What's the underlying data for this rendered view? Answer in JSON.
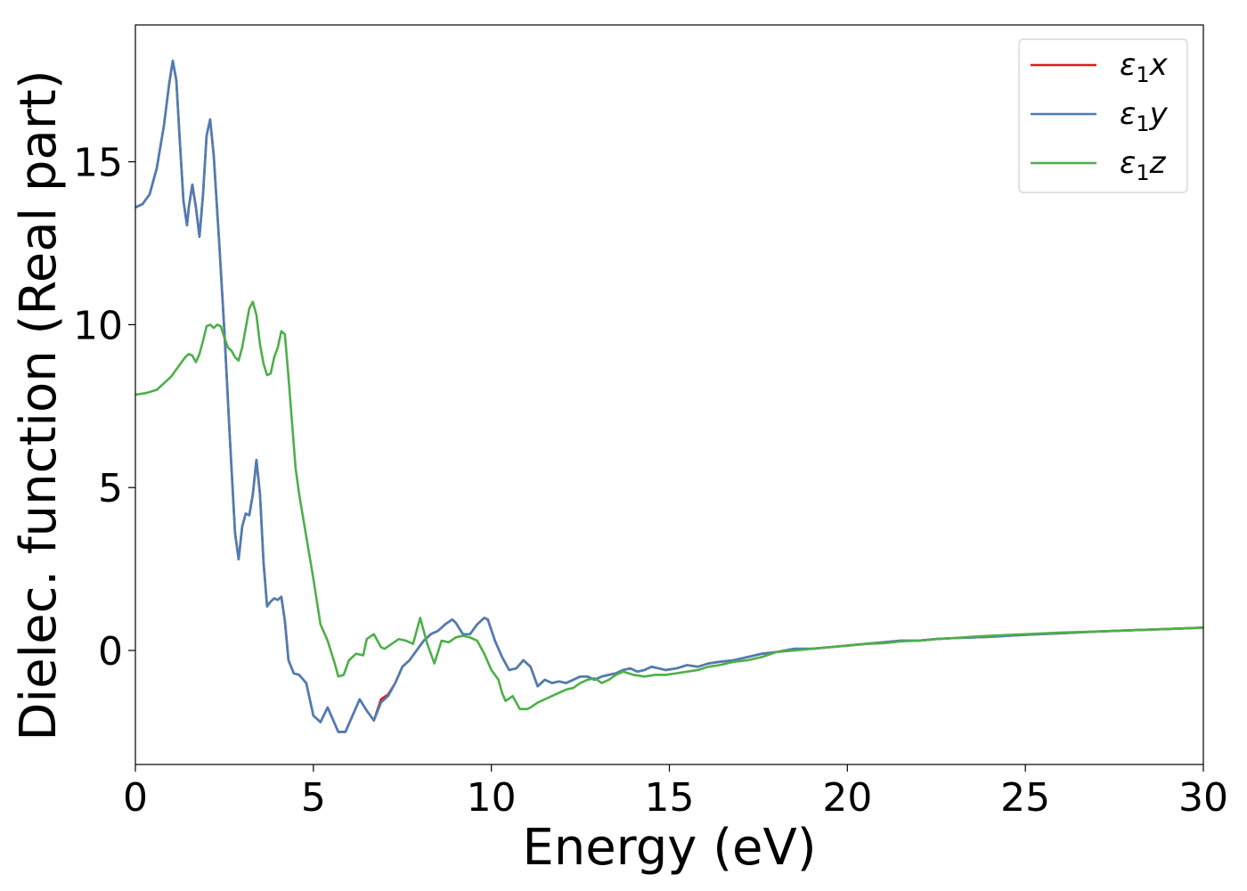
{
  "chart_data": {
    "type": "line",
    "title": "",
    "xlabel": "Energy (eV)",
    "ylabel": "Dielec. function (Real part)",
    "xlim": [
      0,
      30
    ],
    "ylim": [
      -3.5,
      19.2
    ],
    "xticks": [
      0,
      5,
      10,
      15,
      20,
      25,
      30
    ],
    "yticks": [
      0,
      5,
      10,
      15
    ],
    "grid": false,
    "legend_position": "top-right",
    "series": [
      {
        "name": "ε₁x",
        "legend_base": "ε",
        "legend_sub": "1",
        "legend_suffix": "x",
        "color": "#e41a1c",
        "x": [
          0.0,
          0.2,
          0.4,
          0.6,
          0.8,
          0.95,
          1.05,
          1.15,
          1.25,
          1.35,
          1.45,
          1.5,
          1.6,
          1.7,
          1.8,
          1.9,
          2.0,
          2.1,
          2.2,
          2.35,
          2.5,
          2.65,
          2.8,
          2.9,
          3.0,
          3.1,
          3.2,
          3.3,
          3.4,
          3.5,
          3.6,
          3.7,
          3.8,
          3.9,
          4.0,
          4.1,
          4.2,
          4.3,
          4.45,
          4.6,
          4.8,
          5.0,
          5.2,
          5.4,
          5.5,
          5.7,
          5.9,
          6.1,
          6.3,
          6.5,
          6.7,
          6.9,
          7.1,
          7.3,
          7.5,
          7.7,
          7.9,
          8.1,
          8.3,
          8.5,
          8.7,
          8.9,
          9.0,
          9.2,
          9.4,
          9.6,
          9.8,
          9.9,
          10.1,
          10.3,
          10.5,
          10.7,
          10.9,
          11.1,
          11.3,
          11.5,
          11.7,
          11.9,
          12.1,
          12.3,
          12.5,
          12.7,
          12.9,
          13.1,
          13.3,
          13.5,
          13.7,
          13.9,
          14.1,
          14.3,
          14.5,
          14.7,
          14.9,
          15.2,
          15.5,
          15.8,
          16.1,
          16.4,
          16.8,
          17.2,
          17.6,
          18.0,
          18.5,
          19.0,
          19.5,
          20.0,
          20.5,
          21.0,
          21.5,
          22.0,
          22.5,
          23.0,
          23.5,
          24.0,
          25.0,
          26.0,
          27.0,
          28.0,
          29.0,
          30.0
        ],
        "y": [
          13.6,
          13.7,
          14.0,
          14.8,
          16.1,
          17.4,
          18.1,
          17.5,
          15.6,
          13.8,
          13.05,
          13.6,
          14.3,
          13.6,
          12.7,
          14.0,
          15.8,
          16.3,
          15.2,
          12.6,
          9.8,
          6.6,
          3.6,
          2.8,
          3.8,
          4.2,
          4.15,
          4.8,
          5.85,
          4.8,
          2.7,
          1.35,
          1.5,
          1.6,
          1.55,
          1.65,
          0.9,
          -0.3,
          -0.7,
          -0.75,
          -1.0,
          -2.0,
          -2.2,
          -1.75,
          -2.0,
          -2.5,
          -2.5,
          -2.0,
          -1.5,
          -1.85,
          -2.15,
          -1.5,
          -1.35,
          -1.0,
          -0.5,
          -0.3,
          0.0,
          0.3,
          0.5,
          0.6,
          0.8,
          0.95,
          0.85,
          0.5,
          0.5,
          0.8,
          1.0,
          0.95,
          0.3,
          -0.2,
          -0.6,
          -0.55,
          -0.3,
          -0.5,
          -1.1,
          -0.9,
          -1.0,
          -0.95,
          -1.0,
          -0.9,
          -0.8,
          -0.8,
          -0.9,
          -0.8,
          -0.75,
          -0.7,
          -0.6,
          -0.55,
          -0.65,
          -0.6,
          -0.5,
          -0.55,
          -0.6,
          -0.55,
          -0.45,
          -0.5,
          -0.4,
          -0.35,
          -0.3,
          -0.2,
          -0.1,
          -0.05,
          0.05,
          0.05,
          0.1,
          0.15,
          0.2,
          0.25,
          0.3,
          0.3,
          0.35,
          0.38,
          0.4,
          0.42,
          0.48,
          0.53,
          0.58,
          0.62,
          0.66,
          0.7
        ]
      },
      {
        "name": "ε₁y",
        "legend_base": "ε",
        "legend_sub": "1",
        "legend_suffix": "y",
        "color": "#4a7eb6",
        "x": [
          0.0,
          0.2,
          0.4,
          0.6,
          0.8,
          0.95,
          1.05,
          1.15,
          1.25,
          1.35,
          1.45,
          1.5,
          1.6,
          1.7,
          1.8,
          1.9,
          2.0,
          2.1,
          2.2,
          2.35,
          2.5,
          2.65,
          2.8,
          2.9,
          3.0,
          3.1,
          3.2,
          3.3,
          3.4,
          3.5,
          3.6,
          3.7,
          3.8,
          3.9,
          4.0,
          4.1,
          4.2,
          4.3,
          4.45,
          4.6,
          4.8,
          5.0,
          5.2,
          5.4,
          5.5,
          5.7,
          5.9,
          6.1,
          6.3,
          6.5,
          6.7,
          6.9,
          7.1,
          7.3,
          7.5,
          7.7,
          7.9,
          8.1,
          8.3,
          8.5,
          8.7,
          8.9,
          9.0,
          9.2,
          9.4,
          9.6,
          9.8,
          9.9,
          10.1,
          10.3,
          10.5,
          10.7,
          10.9,
          11.1,
          11.3,
          11.5,
          11.7,
          11.9,
          12.1,
          12.3,
          12.5,
          12.7,
          12.9,
          13.1,
          13.3,
          13.5,
          13.7,
          13.9,
          14.1,
          14.3,
          14.5,
          14.7,
          14.9,
          15.2,
          15.5,
          15.8,
          16.1,
          16.4,
          16.8,
          17.2,
          17.6,
          18.0,
          18.5,
          19.0,
          19.5,
          20.0,
          20.5,
          21.0,
          21.5,
          22.0,
          22.5,
          23.0,
          23.5,
          24.0,
          25.0,
          26.0,
          27.0,
          28.0,
          29.0,
          30.0
        ],
        "y": [
          13.6,
          13.7,
          14.0,
          14.8,
          16.1,
          17.4,
          18.1,
          17.5,
          15.6,
          13.8,
          13.05,
          13.6,
          14.3,
          13.6,
          12.7,
          14.0,
          15.8,
          16.3,
          15.2,
          12.6,
          9.8,
          6.6,
          3.6,
          2.8,
          3.8,
          4.2,
          4.15,
          4.8,
          5.85,
          4.8,
          2.7,
          1.35,
          1.5,
          1.6,
          1.55,
          1.65,
          0.9,
          -0.3,
          -0.7,
          -0.75,
          -1.0,
          -2.0,
          -2.2,
          -1.75,
          -2.0,
          -2.5,
          -2.5,
          -2.0,
          -1.5,
          -1.85,
          -2.15,
          -1.6,
          -1.4,
          -1.0,
          -0.5,
          -0.3,
          0.0,
          0.3,
          0.5,
          0.6,
          0.8,
          0.95,
          0.85,
          0.5,
          0.5,
          0.8,
          1.0,
          0.95,
          0.3,
          -0.2,
          -0.6,
          -0.55,
          -0.3,
          -0.5,
          -1.1,
          -0.9,
          -1.0,
          -0.95,
          -1.0,
          -0.9,
          -0.8,
          -0.8,
          -0.9,
          -0.8,
          -0.75,
          -0.7,
          -0.6,
          -0.55,
          -0.65,
          -0.6,
          -0.5,
          -0.55,
          -0.6,
          -0.55,
          -0.45,
          -0.5,
          -0.4,
          -0.35,
          -0.3,
          -0.2,
          -0.1,
          -0.05,
          0.05,
          0.05,
          0.1,
          0.15,
          0.2,
          0.25,
          0.3,
          0.3,
          0.35,
          0.38,
          0.4,
          0.42,
          0.48,
          0.53,
          0.58,
          0.62,
          0.66,
          0.7
        ]
      },
      {
        "name": "ε₁z",
        "legend_base": "ε",
        "legend_sub": "1",
        "legend_suffix": "z",
        "color": "#4daf4a",
        "x": [
          0.0,
          0.3,
          0.6,
          0.9,
          1.0,
          1.2,
          1.4,
          1.5,
          1.6,
          1.7,
          1.8,
          1.9,
          2.0,
          2.1,
          2.2,
          2.3,
          2.4,
          2.5,
          2.6,
          2.7,
          2.8,
          2.9,
          3.0,
          3.1,
          3.2,
          3.3,
          3.4,
          3.5,
          3.6,
          3.7,
          3.8,
          3.9,
          4.0,
          4.1,
          4.2,
          4.3,
          4.4,
          4.5,
          4.6,
          4.8,
          5.0,
          5.2,
          5.4,
          5.6,
          5.7,
          5.85,
          6.0,
          6.2,
          6.4,
          6.5,
          6.7,
          6.9,
          7.0,
          7.2,
          7.4,
          7.6,
          7.8,
          7.9,
          8.0,
          8.2,
          8.4,
          8.6,
          8.8,
          9.0,
          9.2,
          9.4,
          9.6,
          9.8,
          10.0,
          10.2,
          10.3,
          10.4,
          10.6,
          10.8,
          11.0,
          11.1,
          11.3,
          11.5,
          11.7,
          11.9,
          12.1,
          12.3,
          12.5,
          12.7,
          12.9,
          13.1,
          13.3,
          13.5,
          13.7,
          14.0,
          14.3,
          14.6,
          14.9,
          15.2,
          15.5,
          15.8,
          16.1,
          16.4,
          16.8,
          17.2,
          17.6,
          18.0,
          18.5,
          19.0,
          19.5,
          20.0,
          20.5,
          21.0,
          21.5,
          22.0,
          22.5,
          23.0,
          23.5,
          24.0,
          25.0,
          26.0,
          27.0,
          28.0,
          29.0,
          30.0
        ],
        "y": [
          7.85,
          7.9,
          8.0,
          8.3,
          8.4,
          8.7,
          9.0,
          9.1,
          9.05,
          8.85,
          9.1,
          9.5,
          9.95,
          10.0,
          9.9,
          10.0,
          9.95,
          9.6,
          9.3,
          9.2,
          9.0,
          8.9,
          9.3,
          9.9,
          10.5,
          10.7,
          10.3,
          9.4,
          8.8,
          8.45,
          8.5,
          9.0,
          9.3,
          9.8,
          9.7,
          8.4,
          7.0,
          5.6,
          4.8,
          3.5,
          2.2,
          0.8,
          0.3,
          -0.4,
          -0.8,
          -0.75,
          -0.3,
          -0.1,
          -0.15,
          0.35,
          0.5,
          0.1,
          0.05,
          0.2,
          0.35,
          0.3,
          0.2,
          0.6,
          1.0,
          0.2,
          -0.4,
          0.3,
          0.25,
          0.4,
          0.45,
          0.4,
          0.3,
          -0.1,
          -0.6,
          -0.9,
          -1.3,
          -1.55,
          -1.4,
          -1.8,
          -1.8,
          -1.75,
          -1.6,
          -1.5,
          -1.4,
          -1.3,
          -1.2,
          -1.15,
          -1.0,
          -0.9,
          -0.85,
          -1.0,
          -0.9,
          -0.75,
          -0.65,
          -0.75,
          -0.8,
          -0.75,
          -0.75,
          -0.7,
          -0.65,
          -0.6,
          -0.5,
          -0.45,
          -0.35,
          -0.3,
          -0.2,
          -0.05,
          0.0,
          0.05,
          0.1,
          0.15,
          0.2,
          0.22,
          0.28,
          0.3,
          0.35,
          0.38,
          0.42,
          0.45,
          0.5,
          0.55,
          0.58,
          0.62,
          0.66,
          0.7
        ]
      }
    ]
  }
}
